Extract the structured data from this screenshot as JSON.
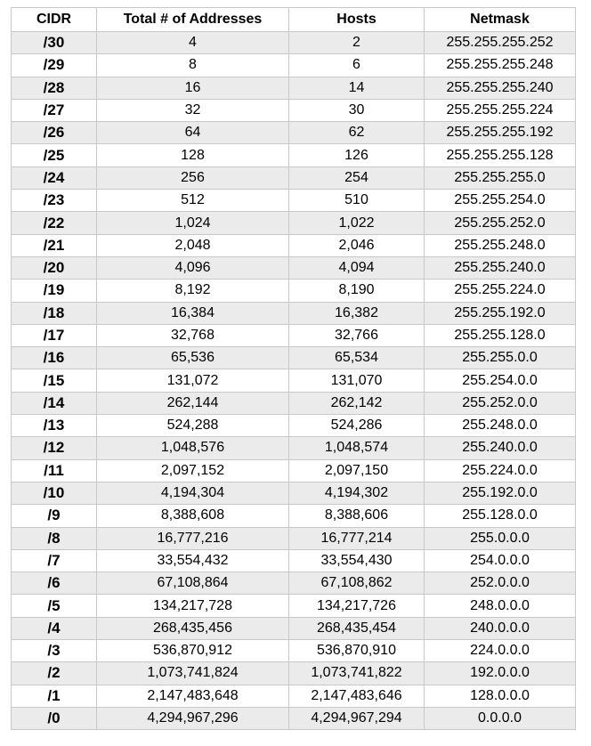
{
  "table": {
    "headers": [
      "CIDR",
      "Total # of Addresses",
      "Hosts",
      "Netmask"
    ],
    "rows": [
      [
        "/30",
        "4",
        "2",
        "255.255.255.252"
      ],
      [
        "/29",
        "8",
        "6",
        "255.255.255.248"
      ],
      [
        "/28",
        "16",
        "14",
        "255.255.255.240"
      ],
      [
        "/27",
        "32",
        "30",
        "255.255.255.224"
      ],
      [
        "/26",
        "64",
        "62",
        "255.255.255.192"
      ],
      [
        "/25",
        "128",
        "126",
        "255.255.255.128"
      ],
      [
        "/24",
        "256",
        "254",
        "255.255.255.0"
      ],
      [
        "/23",
        "512",
        "510",
        "255.255.254.0"
      ],
      [
        "/22",
        "1,024",
        "1,022",
        "255.255.252.0"
      ],
      [
        "/21",
        "2,048",
        "2,046",
        "255.255.248.0"
      ],
      [
        "/20",
        "4,096",
        "4,094",
        "255.255.240.0"
      ],
      [
        "/19",
        "8,192",
        "8,190",
        "255.255.224.0"
      ],
      [
        "/18",
        "16,384",
        "16,382",
        "255.255.192.0"
      ],
      [
        "/17",
        "32,768",
        "32,766",
        "255.255.128.0"
      ],
      [
        "/16",
        "65,536",
        "65,534",
        "255.255.0.0"
      ],
      [
        "/15",
        "131,072",
        "131,070",
        "255.254.0.0"
      ],
      [
        "/14",
        "262,144",
        "262,142",
        "255.252.0.0"
      ],
      [
        "/13",
        "524,288",
        "524,286",
        "255.248.0.0"
      ],
      [
        "/12",
        "1,048,576",
        "1,048,574",
        "255.240.0.0"
      ],
      [
        "/11",
        "2,097,152",
        "2,097,150",
        "255.224.0.0"
      ],
      [
        "/10",
        "4,194,304",
        "4,194,302",
        "255.192.0.0"
      ],
      [
        "/9",
        "8,388,608",
        "8,388,606",
        "255.128.0.0"
      ],
      [
        "/8",
        "16,777,216",
        "16,777,214",
        "255.0.0.0"
      ],
      [
        "/7",
        "33,554,432",
        "33,554,430",
        "254.0.0.0"
      ],
      [
        "/6",
        "67,108,864",
        "67,108,862",
        "252.0.0.0"
      ],
      [
        "/5",
        "134,217,728",
        "134,217,726",
        "248.0.0.0"
      ],
      [
        "/4",
        "268,435,456",
        "268,435,454",
        "240.0.0.0"
      ],
      [
        "/3",
        "536,870,912",
        "536,870,910",
        "224.0.0.0"
      ],
      [
        "/2",
        "1,073,741,824",
        "1,073,741,822",
        "192.0.0.0"
      ],
      [
        "/1",
        "2,147,483,648",
        "2,147,483,646",
        "128.0.0.0"
      ],
      [
        "/0",
        "4,294,967,296",
        "4,294,967,294",
        "0.0.0.0"
      ]
    ]
  },
  "colors": {
    "shaded_row": "#ebebeb",
    "plain_row": "#ffffff",
    "grid_line": "#c8c8c8"
  }
}
